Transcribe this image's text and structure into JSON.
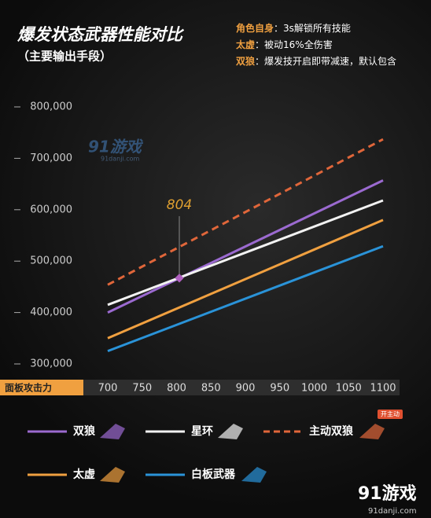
{
  "chart_data": {
    "type": "line",
    "title": "爆发状态武器性能对比",
    "subtitle": "（主要输出手段）",
    "notes": [
      {
        "label": "角色自身",
        "text": "：3s解锁所有技能"
      },
      {
        "label": "太虚",
        "text": "：被动16%全伤害"
      },
      {
        "label": "双狼",
        "text": "：爆发技开启即带减速，默认包含"
      }
    ],
    "x_label": "面板攻击力",
    "x": [
      700,
      1100
    ],
    "xlim": [
      700,
      1100
    ],
    "xticks": [
      700,
      750,
      800,
      850,
      900,
      950,
      1000,
      1050,
      1100
    ],
    "ylim": [
      300000,
      800000
    ],
    "yticks": [
      {
        "value": 300000,
        "label": "300,000"
      },
      {
        "value": 400000,
        "label": "400,000"
      },
      {
        "value": 500000,
        "label": "500,000"
      },
      {
        "value": 600000,
        "label": "600,000"
      },
      {
        "value": 700000,
        "label": "700,000"
      },
      {
        "value": 800000,
        "label": "800,000"
      }
    ],
    "series": [
      {
        "name": "双狼",
        "color": "#9b6ad0",
        "values": [
          400000,
          657000
        ],
        "dash": false
      },
      {
        "name": "星环",
        "color": "#f2f2f2",
        "values": [
          415000,
          618000
        ],
        "dash": false
      },
      {
        "name": "主动双狼",
        "color": "#e0663a",
        "values": [
          454000,
          737000
        ],
        "dash": true
      },
      {
        "name": "太虚",
        "color": "#f0a040",
        "values": [
          350000,
          580000
        ],
        "dash": false
      },
      {
        "name": "白板武器",
        "color": "#2a93d8",
        "values": [
          325000,
          529000
        ],
        "dash": false
      }
    ],
    "annotation": {
      "x": 804,
      "y": 467000
    },
    "badge": "开主动",
    "watermarks": [
      "91游戏",
      "91danji.com"
    ]
  }
}
